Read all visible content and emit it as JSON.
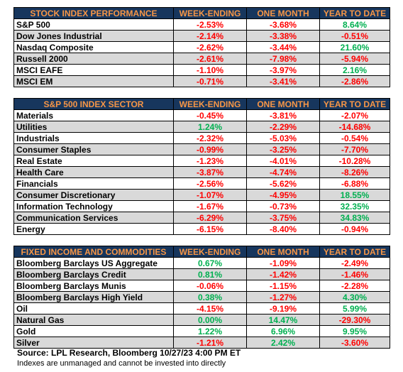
{
  "columns": [
    "WEEK-ENDING",
    "ONE MONTH",
    "YEAR TO DATE"
  ],
  "tables": [
    {
      "title": "STOCK INDEX PERFORMANCE",
      "rows": [
        {
          "name": "S&P 500",
          "values": [
            "-2.53%",
            "-3.68%",
            "8.64%"
          ]
        },
        {
          "name": "Dow Jones Industrial",
          "values": [
            "-2.14%",
            "-3.38%",
            "-0.51%"
          ]
        },
        {
          "name": "Nasdaq Composite",
          "values": [
            "-2.62%",
            "-3.44%",
            "21.60%"
          ]
        },
        {
          "name": "Russell 2000",
          "values": [
            "-2.61%",
            "-7.98%",
            "-5.94%"
          ]
        },
        {
          "name": "MSCI EAFE",
          "values": [
            "-1.10%",
            "-3.97%",
            "2.16%"
          ]
        },
        {
          "name": "MSCI EM",
          "values": [
            "-0.71%",
            "-3.41%",
            "-2.86%"
          ]
        }
      ]
    },
    {
      "title": "S&P 500 INDEX SECTOR",
      "rows": [
        {
          "name": "Materials",
          "values": [
            "-0.45%",
            "-3.81%",
            "-2.07%"
          ]
        },
        {
          "name": "Utilities",
          "values": [
            "1.24%",
            "-2.29%",
            "-14.68%"
          ]
        },
        {
          "name": "Industrials",
          "values": [
            "-2.32%",
            "-5.03%",
            "-0.54%"
          ]
        },
        {
          "name": "Consumer Staples",
          "values": [
            "-0.99%",
            "-3.25%",
            "-7.70%"
          ]
        },
        {
          "name": "Real Estate",
          "values": [
            "-1.23%",
            "-4.01%",
            "-10.28%"
          ]
        },
        {
          "name": "Health Care",
          "values": [
            "-3.87%",
            "-4.74%",
            "-8.26%"
          ]
        },
        {
          "name": "Financials",
          "values": [
            "-2.56%",
            "-5.62%",
            "-6.88%"
          ]
        },
        {
          "name": "Consumer Discretionary",
          "values": [
            "-1.07%",
            "-4.95%",
            "18.55%"
          ]
        },
        {
          "name": "Information Technology",
          "values": [
            "-1.67%",
            "-0.73%",
            "32.35%"
          ]
        },
        {
          "name": "Communication Services",
          "values": [
            "-6.29%",
            "-3.75%",
            "34.83%"
          ]
        },
        {
          "name": "Energy",
          "values": [
            "-6.15%",
            "-8.40%",
            "-0.94%"
          ]
        }
      ]
    },
    {
      "title": "FIXED INCOME AND COMMODITIES",
      "rows": [
        {
          "name": "Bloomberg Barclays US Aggregate",
          "values": [
            "0.67%",
            "-1.09%",
            "-2.49%"
          ]
        },
        {
          "name": "Bloomberg Barclays Credit",
          "values": [
            "0.81%",
            "-1.42%",
            "-1.46%"
          ]
        },
        {
          "name": "Bloomberg Barclays Munis",
          "values": [
            "-0.06%",
            "-1.15%",
            "-2.28%"
          ]
        },
        {
          "name": "Bloomberg Barclays High Yield",
          "values": [
            "0.38%",
            "-1.27%",
            "4.30%"
          ]
        },
        {
          "name": "Oil",
          "values": [
            "-4.15%",
            "-9.19%",
            "5.99%"
          ]
        },
        {
          "name": "Natural Gas",
          "values": [
            "0.00%",
            "14.47%",
            "-29.30%"
          ]
        },
        {
          "name": "Gold",
          "values": [
            "1.22%",
            "6.96%",
            "9.95%"
          ]
        },
        {
          "name": "Silver",
          "values": [
            "-1.21%",
            "2.42%",
            "-3.60%"
          ]
        }
      ]
    }
  ],
  "footer": {
    "source": "Source: LPL Research, Bloomberg 10/27/23 4:00 PM ET",
    "disclaimer": "Indexes are unmanaged and cannot be invested into directly"
  },
  "colors": {
    "header_bg": "#17365d",
    "header_text": "#f79646",
    "negative": "#ff0000",
    "positive": "#00b050",
    "alt_row": "#d9d9d9"
  }
}
